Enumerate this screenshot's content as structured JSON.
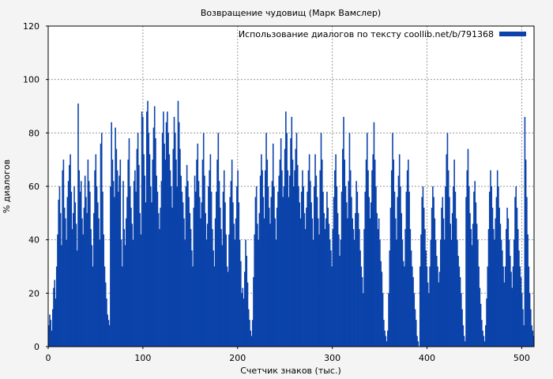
{
  "chart_data": {
    "type": "bar",
    "title": "Возвращение чудовищ (Марк Вамслер)",
    "xlabel": "Счетчик знаков (тыс.)",
    "ylabel": "% диалогов",
    "xlim": [
      0,
      513
    ],
    "ylim": [
      0,
      120
    ],
    "xticks": [
      0,
      100,
      200,
      300,
      400,
      500
    ],
    "yticks": [
      0,
      20,
      40,
      60,
      80,
      100,
      120
    ],
    "grid": true,
    "legend_position": "top-right",
    "series": [
      {
        "name": "Использование диалогов по тексту coollib.net/b/791368",
        "color": "#0b43aa",
        "x_start": 0,
        "x_step": 1,
        "values": [
          8,
          12,
          10,
          6,
          14,
          22,
          25,
          18,
          30,
          42,
          55,
          60,
          50,
          38,
          66,
          70,
          52,
          48,
          40,
          56,
          62,
          68,
          72,
          58,
          44,
          50,
          60,
          54,
          46,
          36,
          91,
          66,
          58,
          62,
          48,
          42,
          52,
          64,
          56,
          50,
          70,
          62,
          58,
          44,
          38,
          30,
          50,
          66,
          72,
          60,
          54,
          48,
          40,
          76,
          80,
          58,
          42,
          30,
          24,
          18,
          12,
          10,
          8,
          60,
          84,
          70,
          62,
          56,
          82,
          74,
          66,
          58,
          64,
          70,
          40,
          30,
          62,
          44,
          38,
          48,
          56,
          70,
          78,
          60,
          52,
          46,
          40,
          62,
          66,
          58,
          74,
          80,
          68,
          50,
          42,
          88,
          86,
          72,
          64,
          54,
          88,
          92,
          80,
          72,
          60,
          54,
          70,
          82,
          90,
          78,
          64,
          58,
          50,
          44,
          52,
          62,
          80,
          88,
          76,
          70,
          84,
          88,
          80,
          72,
          66,
          60,
          52,
          74,
          86,
          80,
          70,
          60,
          92,
          84,
          74,
          64,
          58,
          54,
          48,
          40,
          60,
          68,
          62,
          56,
          50,
          44,
          36,
          30,
          52,
          64,
          58,
          70,
          76,
          62,
          56,
          48,
          54,
          70,
          80,
          64,
          50,
          40,
          46,
          60,
          66,
          72,
          58,
          44,
          36,
          30,
          48,
          58,
          70,
          80,
          62,
          52,
          44,
          38,
          58,
          66,
          54,
          42,
          30,
          28,
          42,
          56,
          62,
          70,
          54,
          46,
          40,
          48,
          60,
          66,
          54,
          40,
          32,
          20,
          22,
          18,
          28,
          40,
          34,
          24,
          14,
          10,
          6,
          4,
          10,
          26,
          42,
          56,
          60,
          46,
          40,
          50,
          64,
          72,
          66,
          56,
          48,
          66,
          80,
          70,
          60,
          52,
          46,
          56,
          62,
          76,
          60,
          48,
          40,
          52,
          58,
          64,
          70,
          78,
          66,
          56,
          60,
          74,
          88,
          80,
          66,
          56,
          64,
          78,
          86,
          70,
          60,
          66,
          74,
          80,
          68,
          60,
          54,
          48,
          58,
          66,
          60,
          50,
          44,
          52,
          58,
          66,
          72,
          62,
          54,
          48,
          40,
          60,
          72,
          64,
          56,
          48,
          42,
          66,
          80,
          70,
          58,
          50,
          44,
          48,
          58,
          52,
          46,
          40,
          36,
          30,
          44,
          56,
          66,
          72,
          60,
          50,
          42,
          34,
          40,
          58,
          74,
          86,
          70,
          60,
          54,
          48,
          62,
          80,
          66,
          56,
          48,
          44,
          40,
          50,
          62,
          58,
          50,
          44,
          36,
          30,
          26,
          20,
          44,
          58,
          70,
          80,
          66,
          56,
          48,
          54,
          66,
          72,
          84,
          70,
          60,
          50,
          44,
          48,
          40,
          32,
          28,
          20,
          10,
          6,
          4,
          2,
          6,
          20,
          36,
          52,
          66,
          80,
          70,
          58,
          48,
          40,
          56,
          64,
          72,
          60,
          50,
          40,
          32,
          30,
          44,
          58,
          66,
          70,
          58,
          44,
          36,
          30,
          26,
          20,
          14,
          10,
          4,
          2,
          0,
          30,
          42,
          56,
          60,
          52,
          44,
          36,
          30,
          24,
          20,
          30,
          40,
          52,
          60,
          56,
          48,
          40,
          34,
          30,
          24,
          28,
          40,
          52,
          56,
          48,
          40,
          60,
          72,
          80,
          66,
          56,
          46,
          40,
          50,
          60,
          70,
          58,
          48,
          40,
          34,
          30,
          26,
          20,
          14,
          8,
          4,
          2,
          56,
          66,
          74,
          60,
          50,
          44,
          38,
          46,
          58,
          62,
          54,
          46,
          40,
          30,
          22,
          16,
          10,
          6,
          4,
          2,
          8,
          18,
          30,
          44,
          58,
          66,
          60,
          52,
          44,
          40,
          48,
          56,
          66,
          60,
          52,
          46,
          40,
          36,
          30,
          24,
          30,
          44,
          52,
          48,
          40,
          34,
          28,
          22,
          30,
          40,
          56,
          60,
          52,
          44,
          36,
          30,
          26,
          20,
          14,
          8,
          86,
          70,
          56,
          42,
          30,
          20,
          14,
          8,
          6,
          4
        ]
      }
    ]
  }
}
